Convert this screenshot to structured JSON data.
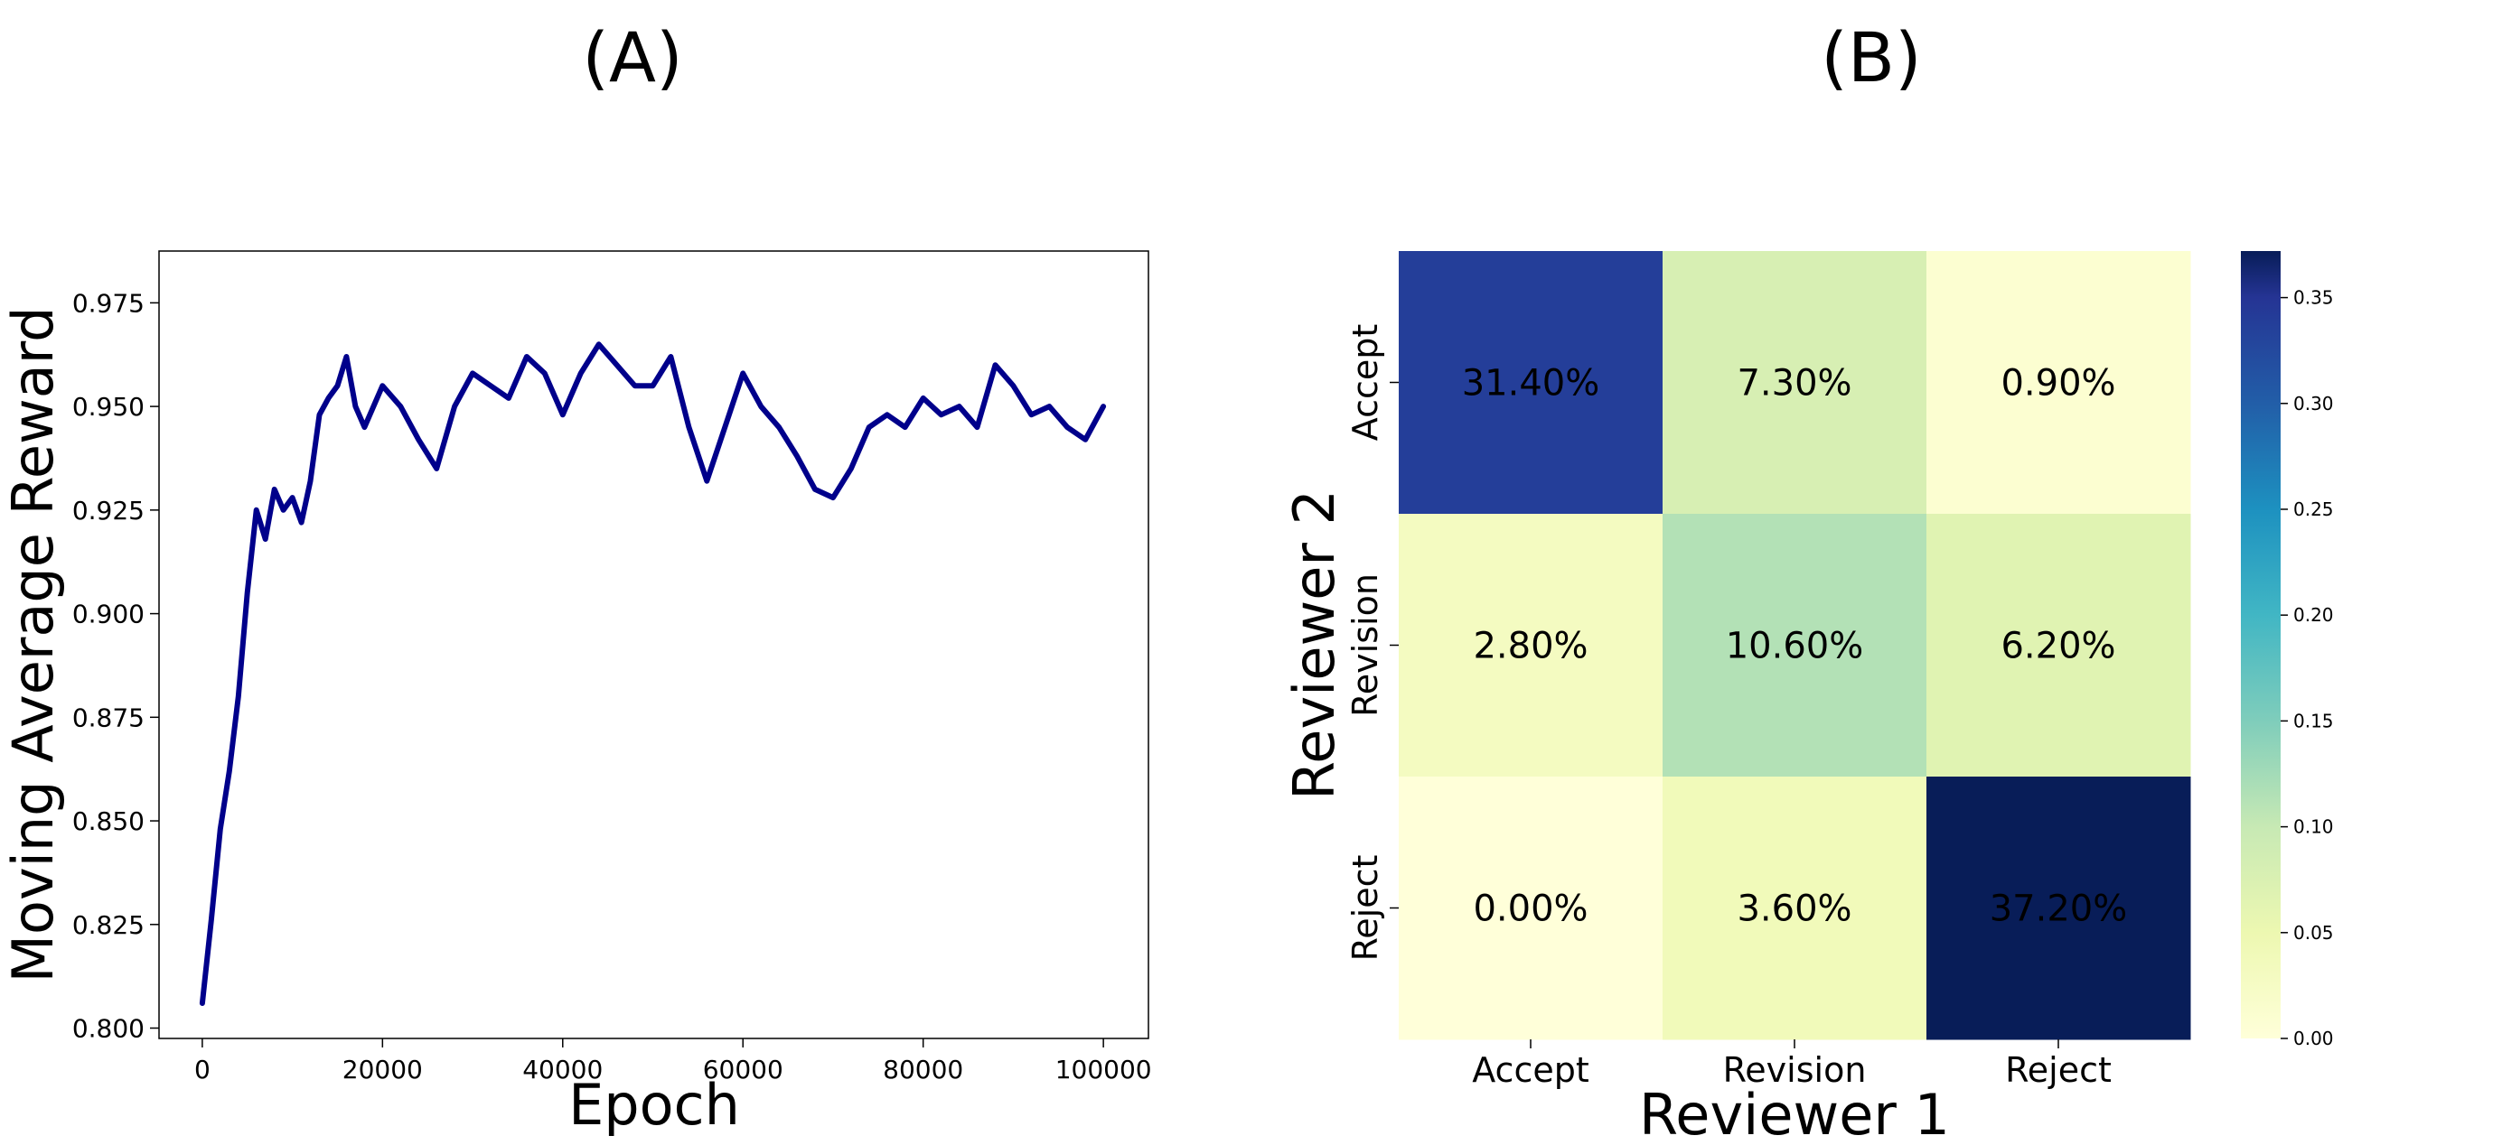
{
  "panels": {
    "a": {
      "label": "(A)"
    },
    "b": {
      "label": "(B)"
    }
  },
  "chart_data": [
    {
      "type": "line",
      "panel": "(A)",
      "xlabel": "Epoch",
      "ylabel": "Moving Average Reward",
      "xlim": [
        -4800,
        105000
      ],
      "ylim": [
        0.7975,
        0.9875
      ],
      "x_ticks": [
        0,
        20000,
        40000,
        60000,
        80000,
        100000
      ],
      "x_tick_labels": [
        "0",
        "20000",
        "40000",
        "60000",
        "80000",
        "100000"
      ],
      "y_ticks": [
        0.8,
        0.825,
        0.85,
        0.875,
        0.9,
        0.925,
        0.95,
        0.975
      ],
      "y_tick_labels": [
        "0.800",
        "0.825",
        "0.850",
        "0.875",
        "0.900",
        "0.925",
        "0.950",
        "0.975"
      ],
      "color": "#00008b",
      "grid": false,
      "series": [
        {
          "x": [
            0,
            1000,
            2000,
            3000,
            4000,
            5000,
            6000,
            7000,
            8000,
            9000,
            10000,
            11000,
            12000,
            13000,
            14000,
            15000,
            16000,
            17000,
            18000,
            20000,
            22000,
            24000,
            26000,
            28000,
            30000,
            32000,
            34000,
            36000,
            38000,
            40000,
            42000,
            44000,
            46000,
            48000,
            50000,
            52000,
            54000,
            56000,
            58000,
            60000,
            62000,
            64000,
            66000,
            68000,
            70000,
            72000,
            74000,
            76000,
            78000,
            80000,
            82000,
            84000,
            86000,
            88000,
            90000,
            92000,
            94000,
            96000,
            98000,
            100000
          ],
          "y": [
            0.806,
            0.826,
            0.848,
            0.862,
            0.88,
            0.905,
            0.925,
            0.918,
            0.93,
            0.925,
            0.928,
            0.922,
            0.932,
            0.948,
            0.952,
            0.955,
            0.962,
            0.95,
            0.945,
            0.955,
            0.95,
            0.942,
            0.935,
            0.95,
            0.958,
            0.955,
            0.952,
            0.962,
            0.958,
            0.948,
            0.958,
            0.965,
            0.96,
            0.955,
            0.955,
            0.962,
            0.945,
            0.932,
            0.945,
            0.958,
            0.95,
            0.945,
            0.938,
            0.93,
            0.928,
            0.935,
            0.945,
            0.948,
            0.945,
            0.952,
            0.948,
            0.95,
            0.945,
            0.96,
            0.955,
            0.948,
            0.95,
            0.945,
            0.942,
            0.95
          ]
        }
      ]
    },
    {
      "type": "heatmap",
      "panel": "(B)",
      "xlabel": "Reviewer 1",
      "ylabel": "Reviewer 2",
      "x_categories": [
        "Accept",
        "Revision",
        "Reject"
      ],
      "y_categories": [
        "Accept",
        "Revision",
        "Reject"
      ],
      "values": [
        [
          0.314,
          0.073,
          0.009
        ],
        [
          0.028,
          0.106,
          0.062
        ],
        [
          0.0,
          0.036,
          0.372
        ]
      ],
      "labels": [
        [
          "31.40%",
          "7.30%",
          "0.90%"
        ],
        [
          "2.80%",
          "10.60%",
          "6.20%"
        ],
        [
          "0.00%",
          "3.60%",
          "37.20%"
        ]
      ],
      "colormap": "YlGnBu",
      "colorbar_range": [
        0,
        0.372
      ],
      "colorbar_ticks": [
        0.0,
        0.05,
        0.1,
        0.15,
        0.2,
        0.25,
        0.3,
        0.35
      ],
      "colorbar_tick_labels": [
        "0.00",
        "0.05",
        "0.10",
        "0.15",
        "0.20",
        "0.25",
        "0.30",
        "0.35"
      ]
    }
  ]
}
